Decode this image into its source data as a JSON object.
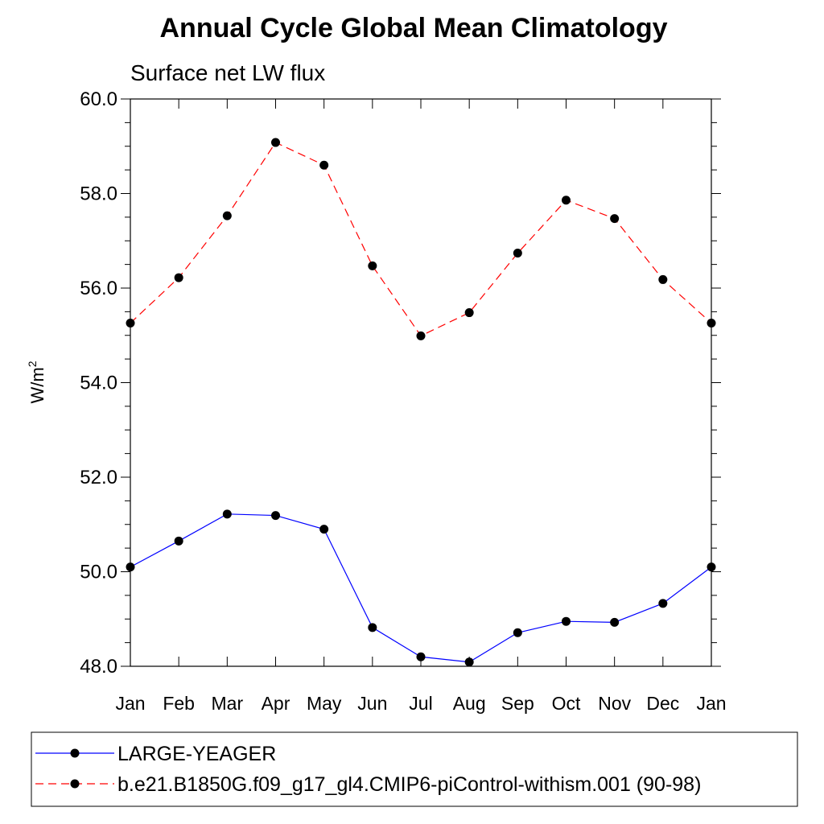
{
  "chart_data": {
    "type": "line",
    "title": "Annual Cycle Global Mean Climatology",
    "subtitle": "Surface net LW flux",
    "ylabel_base": "W/m",
    "ylabel_sup": "2",
    "xlabel": "",
    "categories": [
      "Jan",
      "Feb",
      "Mar",
      "Apr",
      "May",
      "Jun",
      "Jul",
      "Aug",
      "Sep",
      "Oct",
      "Nov",
      "Dec",
      "Jan"
    ],
    "ylim": [
      48.0,
      60.0
    ],
    "yticks": [
      "48.0",
      "50.0",
      "52.0",
      "54.0",
      "56.0",
      "58.0",
      "60.0"
    ],
    "grid": false,
    "legend_position": "bottom",
    "series": [
      {
        "name": "LARGE-YEAGER",
        "color": "#0000ff",
        "line_style": "solid",
        "values": [
          50.1,
          50.65,
          51.22,
          51.19,
          50.9,
          48.82,
          48.2,
          48.09,
          48.71,
          48.95,
          48.93,
          49.33,
          50.1
        ]
      },
      {
        "name": "b.e21.B1850G.f09_g17_gl4.CMIP6-piControl-withism.001 (90-98)",
        "color": "#ff0000",
        "line_style": "dashed",
        "values": [
          55.26,
          56.22,
          57.53,
          59.08,
          58.6,
          56.47,
          54.99,
          55.48,
          56.74,
          57.86,
          57.47,
          56.18,
          55.26
        ]
      }
    ]
  }
}
